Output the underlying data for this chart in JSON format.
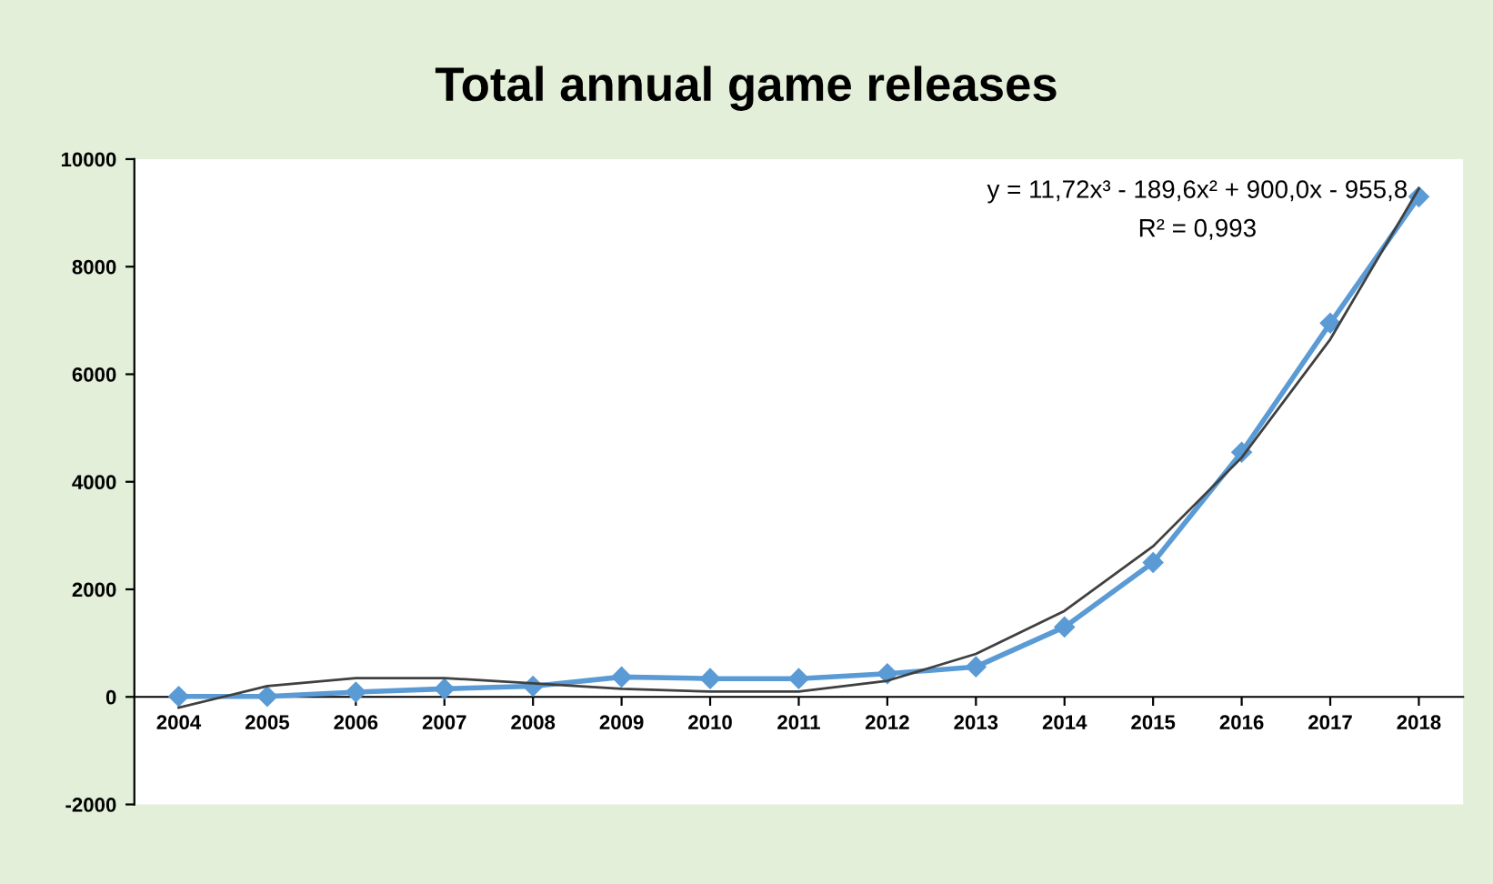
{
  "chart_data": {
    "type": "line",
    "title": "Total annual game releases",
    "categories": [
      "2004",
      "2005",
      "2006",
      "2007",
      "2008",
      "2009",
      "2010",
      "2011",
      "2012",
      "2013",
      "2014",
      "2015",
      "2016",
      "2017",
      "2018"
    ],
    "series": [
      {
        "color": "#5b9bd5",
        "marker": "diamond",
        "values": [
          10,
          10,
          90,
          150,
          200,
          370,
          340,
          340,
          430,
          560,
          1300,
          2500,
          4550,
          6950,
          9300
        ]
      },
      {
        "color": "#404040",
        "marker": "none",
        "values": [
          -200,
          200,
          350,
          350,
          250,
          150,
          100,
          100,
          300,
          800,
          1600,
          2800,
          4450,
          6650,
          9450
        ]
      }
    ],
    "ylim": [
      -2000,
      10000
    ],
    "yticks": [
      -2000,
      0,
      2000,
      4000,
      6000,
      8000,
      10000
    ],
    "grid": false,
    "legend": false,
    "annotations": [
      "y = 11,72x³ - 189,6x² + 900,0x - 955,8",
      "R² = 0,993"
    ]
  }
}
